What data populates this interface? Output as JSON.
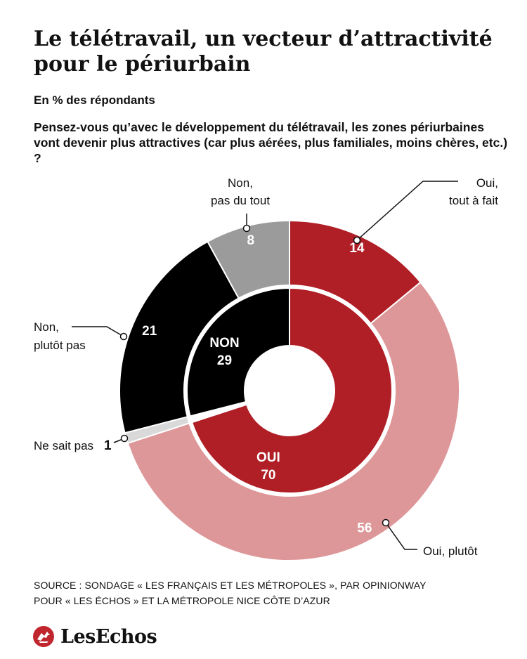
{
  "title_line1": "Le télétravail, un vecteur d’attractivité",
  "title_line2": "pour le périurbain",
  "subtitle": "En % des répondants",
  "question": "Pensez-vous qu’avec le développement du télétravail, les zones périurbaines vont devenir plus attractives (car plus aérées, plus familiales, moins chères, etc.) ?",
  "source_line1": "SOURCE : SONDAGE « LES FRANÇAIS ET LES MÉTROPOLES », PAR OPINIONWAY",
  "source_line2": "POUR « LES ÉCHOS » ET LA MÉTROPOLE NICE CÔTE D’AZUR",
  "brand": "LesEchos",
  "chart_data": {
    "type": "pie",
    "variant": "nested-donut",
    "inner": [
      {
        "label": "OUI",
        "value": 70,
        "color": "#b01e26"
      },
      {
        "label": "NON",
        "value": 29,
        "color": "#000000"
      }
    ],
    "outer": [
      {
        "label": "Oui, tout à fait",
        "value": 14,
        "color": "#b01e26",
        "group": "OUI"
      },
      {
        "label": "Oui, plutôt",
        "value": 56,
        "color": "#de9799",
        "group": "OUI"
      },
      {
        "label": "Ne sait pas",
        "value": 1,
        "color": "#d9d9d9",
        "group": null
      },
      {
        "label": "Non, plutôt pas",
        "value": 21,
        "color": "#000000",
        "group": "NON"
      },
      {
        "label": "Non, pas du tout",
        "value": 8,
        "color": "#9b9b9b",
        "group": "NON"
      }
    ]
  }
}
